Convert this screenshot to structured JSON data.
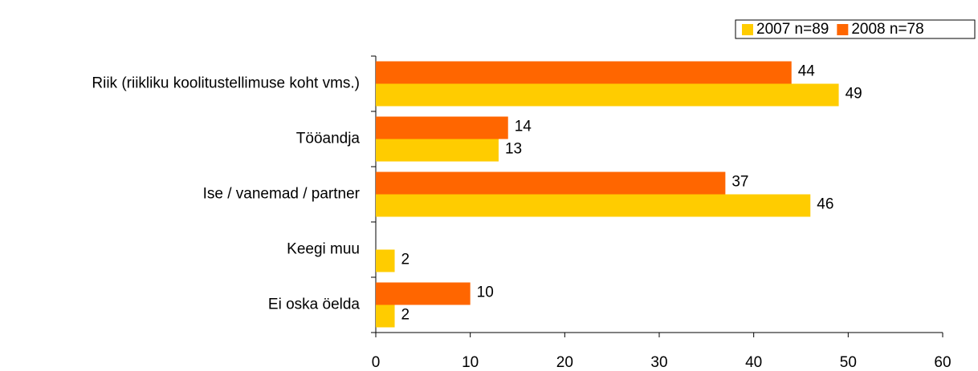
{
  "chart_data": {
    "type": "bar",
    "orientation": "horizontal",
    "categories": [
      "Riik (riikliku koolitustellimuse koht vms.)",
      "Tööandja",
      "Ise / vanemad / partner",
      "Keegi muu",
      "Ei oska öelda"
    ],
    "series": [
      {
        "name": "2007 n=89",
        "color": "#FFCC00",
        "values": [
          49,
          13,
          46,
          2,
          2
        ]
      },
      {
        "name": "2008 n=78",
        "color": "#FF6600",
        "values": [
          44,
          14,
          37,
          null,
          10
        ]
      }
    ],
    "xlim": [
      0,
      60
    ],
    "xticks": [
      0,
      10,
      20,
      30,
      40,
      50,
      60
    ],
    "legend": "top-right"
  }
}
